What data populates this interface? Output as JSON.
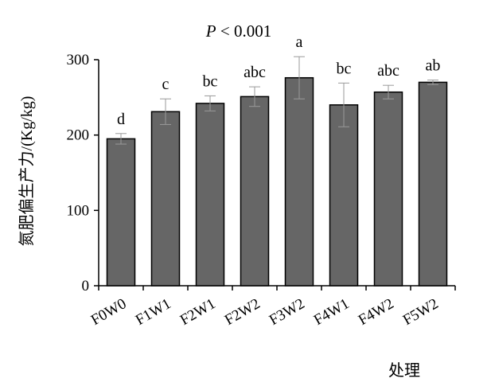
{
  "chart_data": {
    "type": "bar",
    "annotation": "P < 0.001",
    "annotation_italic_part": "P",
    "annotation_rest": " < 0.001",
    "xlabel": "处理",
    "ylabel": "氮肥偏生产力/(Kg/kg)",
    "ylim": [
      0,
      300
    ],
    "yticks": [
      0,
      100,
      200,
      300
    ],
    "categories": [
      "F0W0",
      "F1W1",
      "F2W1",
      "F2W2",
      "F3W2",
      "F4W1",
      "F4W2",
      "F5W2"
    ],
    "values": [
      195,
      231,
      242,
      251,
      276,
      240,
      257,
      270
    ],
    "errors": [
      7,
      17,
      10,
      13,
      28,
      29,
      9,
      3
    ],
    "letters": [
      "d",
      "c",
      "bc",
      "abc",
      "a",
      "bc",
      "abc",
      "ab"
    ],
    "bar_color": "#666666",
    "grid": false,
    "legend": "none"
  }
}
